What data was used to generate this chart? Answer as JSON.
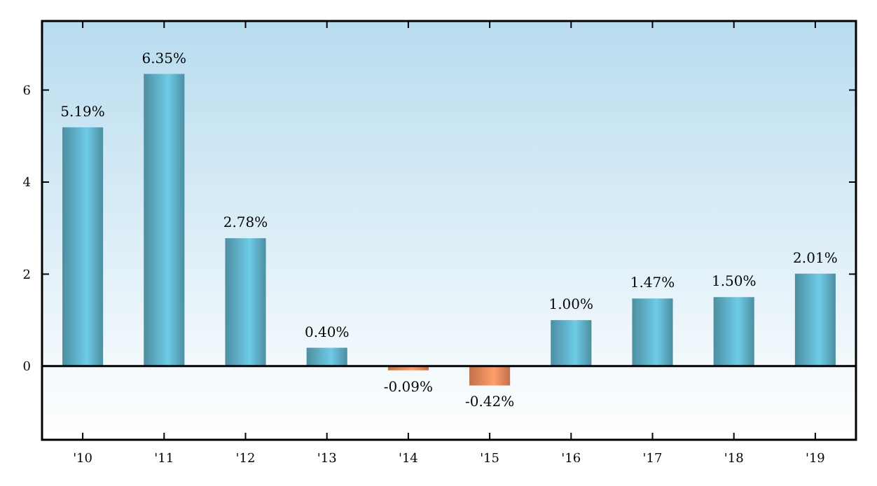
{
  "chart_data": {
    "type": "bar",
    "categories": [
      "'10",
      "'11",
      "'12",
      "'13",
      "'14",
      "'15",
      "'16",
      "'17",
      "'18",
      "'19"
    ],
    "values": [
      5.19,
      6.35,
      2.78,
      0.4,
      -0.09,
      -0.42,
      1.0,
      1.47,
      1.5,
      2.01
    ],
    "value_labels": [
      "5.19%",
      "6.35%",
      "2.78%",
      "0.40%",
      "-0.09%",
      "-0.42%",
      "1.00%",
      "1.47%",
      "1.50%",
      "2.01%"
    ],
    "colors": [
      "#5fb0c8",
      "#5fb0c8",
      "#5fb0c8",
      "#5fb0c8",
      "#f08a5d",
      "#f08a5d",
      "#5fb0c8",
      "#5fb0c8",
      "#5fb0c8",
      "#5fb0c8"
    ],
    "ylim": [
      -1.6,
      7.5
    ],
    "yticks": [
      0,
      2,
      4,
      6
    ],
    "ref_lines": [
      {
        "axis": "y",
        "value": 0,
        "color": "#000000"
      }
    ]
  }
}
